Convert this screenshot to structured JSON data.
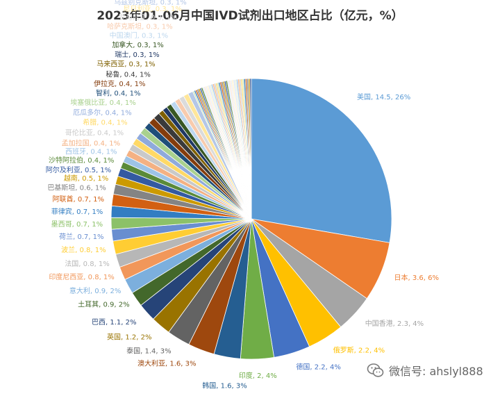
{
  "chart_data": {
    "type": "pie",
    "title": "2023年01-06月中国IVD试剂出口地区占比（亿元，%）",
    "slices": [
      {
        "label": "美国",
        "value": 14.5,
        "percent": "26%",
        "color": "#5B9BD5"
      },
      {
        "label": "日本",
        "value": 3.6,
        "percent": "6%",
        "color": "#ED7D31"
      },
      {
        "label": "中国香港",
        "value": 2.3,
        "percent": "4%",
        "color": "#A5A5A5"
      },
      {
        "label": "俄罗斯",
        "value": 2.2,
        "percent": "4%",
        "color": "#FFC000"
      },
      {
        "label": "德国",
        "value": 2.2,
        "percent": "4%",
        "color": "#4472C4"
      },
      {
        "label": "印度",
        "value": 2.0,
        "percent": "4%",
        "color": "#70AD47"
      },
      {
        "label": "韩国",
        "value": 1.6,
        "percent": "3%",
        "color": "#255E91"
      },
      {
        "label": "澳大利亚",
        "value": 1.6,
        "percent": "3%",
        "color": "#9E480E"
      },
      {
        "label": "泰国",
        "value": 1.4,
        "percent": "3%",
        "color": "#636363"
      },
      {
        "label": "英国",
        "value": 1.2,
        "percent": "2%",
        "color": "#997300"
      },
      {
        "label": "巴西",
        "value": 1.1,
        "percent": "2%",
        "color": "#264478"
      },
      {
        "label": "土耳其",
        "value": 0.9,
        "percent": "2%",
        "color": "#43682B"
      },
      {
        "label": "意大利",
        "value": 0.9,
        "percent": "2%",
        "color": "#7CAFDD"
      },
      {
        "label": "印度尼西亚",
        "value": 0.8,
        "percent": "1%",
        "color": "#F1975A"
      },
      {
        "label": "法国",
        "value": 0.8,
        "percent": "1%",
        "color": "#B7B7B7"
      },
      {
        "label": "波兰",
        "value": 0.8,
        "percent": "1%",
        "color": "#FFCD33"
      },
      {
        "label": "荷兰",
        "value": 0.7,
        "percent": "1%",
        "color": "#698ED0"
      },
      {
        "label": "墨西哥",
        "value": 0.7,
        "percent": "1%",
        "color": "#8CC168"
      },
      {
        "label": "菲律宾",
        "value": 0.7,
        "percent": "1%",
        "color": "#327DC2"
      },
      {
        "label": "阿联酋",
        "value": 0.7,
        "percent": "1%",
        "color": "#D26012"
      },
      {
        "label": "巴基斯坦",
        "value": 0.6,
        "percent": "1%",
        "color": "#848484"
      },
      {
        "label": "越南",
        "value": 0.5,
        "percent": "1%",
        "color": "#CC9A00"
      },
      {
        "label": "阿尔及利亚",
        "value": 0.5,
        "percent": "1%",
        "color": "#335AA1"
      },
      {
        "label": "沙特阿拉伯",
        "value": 0.4,
        "percent": "1%",
        "color": "#5A8A39"
      },
      {
        "label": "西班牙",
        "value": 0.4,
        "percent": "1%",
        "color": "#9DC3E6"
      },
      {
        "label": "孟加拉国",
        "value": 0.4,
        "percent": "1%",
        "color": "#F4B183"
      },
      {
        "label": "哥伦比亚",
        "value": 0.4,
        "percent": "1%",
        "color": "#C9C9C9"
      },
      {
        "label": "希腊",
        "value": 0.4,
        "percent": "1%",
        "color": "#FFD966"
      },
      {
        "label": "厄瓜多尔",
        "value": 0.4,
        "percent": "1%",
        "color": "#8FAADC"
      },
      {
        "label": "埃塞俄比亚",
        "value": 0.4,
        "percent": "1%",
        "color": "#A9D18E"
      },
      {
        "label": "智利",
        "value": 0.4,
        "percent": "1%",
        "color": "#1F4E79"
      },
      {
        "label": "伊拉克",
        "value": 0.4,
        "percent": "1%",
        "color": "#843C0C"
      },
      {
        "label": "秘鲁",
        "value": 0.4,
        "percent": "1%",
        "color": "#3A3A3A"
      },
      {
        "label": "马来西亚",
        "value": 0.3,
        "percent": "1%",
        "color": "#7F6000"
      },
      {
        "label": "瑞士",
        "value": 0.3,
        "percent": "1%",
        "color": "#203864"
      },
      {
        "label": "加拿大",
        "value": 0.3,
        "percent": "1%",
        "color": "#385723"
      },
      {
        "label": "中国澳门",
        "value": 0.3,
        "percent": "1%",
        "color": "#BDD7EE"
      },
      {
        "label": "哈萨克斯坦",
        "value": 0.3,
        "percent": "1%",
        "color": "#F8CBAD"
      },
      {
        "label": "罗马尼亚",
        "value": 0.3,
        "percent": "1%",
        "color": "#DBDBDB"
      },
      {
        "label": "尼日利亚",
        "value": 0.3,
        "percent": "1%",
        "color": "#FFE699"
      },
      {
        "label": "乌兹别克斯坦",
        "value": 0.3,
        "percent": "1%",
        "color": "#B4C7E7"
      }
    ],
    "other_slices": {
      "count": 40,
      "value_each": 0.09,
      "colors": [
        "#C5E0B4",
        "#2E75B6",
        "#C55A11",
        "#7B7B7B",
        "#BF9000",
        "#2F5597",
        "#548235",
        "#DEEBF7",
        "#FBE5D6",
        "#EDEDED",
        "#FFF2CC",
        "#DAE3F3",
        "#E2F0D9",
        "#9DC3E6",
        "#F4B183",
        "#C9C9C9",
        "#FFD966"
      ]
    }
  },
  "watermark": {
    "text": "微信号: ahslyl888",
    "icon": "wechat-icon"
  }
}
